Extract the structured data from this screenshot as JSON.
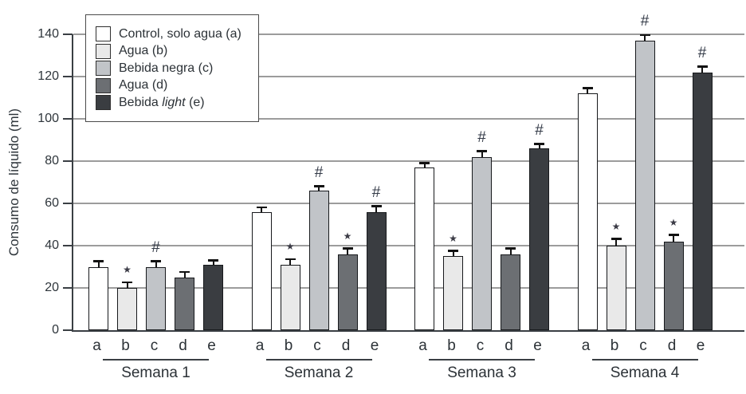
{
  "chart_data": {
    "type": "bar",
    "title": "",
    "ylabel": "Consumo de líquido (ml)",
    "xlabel": "",
    "ylim": [
      0,
      140
    ],
    "yticks": [
      0,
      20,
      40,
      60,
      80,
      100,
      120,
      140
    ],
    "grid": true,
    "legend_position": "top-left",
    "groups": [
      "Semana 1",
      "Semana 2",
      "Semana 3",
      "Semana 4"
    ],
    "bar_letters": [
      "a",
      "b",
      "c",
      "d",
      "e"
    ],
    "series": [
      {
        "letter": "a",
        "label": "Control, solo agua (a)",
        "italic_word": null,
        "color": "#ffffff",
        "values": [
          30,
          56,
          77,
          112
        ],
        "errors": [
          2.5,
          2,
          2,
          2.5
        ],
        "annotations": [
          "",
          "",
          "",
          ""
        ]
      },
      {
        "letter": "b",
        "label": "Agua (b)",
        "italic_word": null,
        "color": "#e9e9e9",
        "values": [
          20,
          31,
          35,
          40
        ],
        "errors": [
          2.5,
          2.5,
          2.5,
          3
        ],
        "annotations": [
          "★",
          "★",
          "★",
          "★"
        ]
      },
      {
        "letter": "c",
        "label": "Bebida negra (c)",
        "italic_word": null,
        "color": "#c1c4c8",
        "values": [
          30,
          66,
          82,
          137
        ],
        "errors": [
          2.5,
          2,
          2.5,
          2.5
        ],
        "annotations": [
          "#",
          "#",
          "#",
          "#"
        ]
      },
      {
        "letter": "d",
        "label": "Agua (d)",
        "italic_word": null,
        "color": "#6c6f73",
        "values": [
          25,
          36,
          36,
          42
        ],
        "errors": [
          2.5,
          2.5,
          2.5,
          3
        ],
        "annotations": [
          "",
          "★",
          "",
          "★"
        ]
      },
      {
        "letter": "e",
        "label": "Bebida light (e)",
        "italic_word": "light",
        "color": "#3a3d41",
        "values": [
          31,
          56,
          86,
          122
        ],
        "errors": [
          2,
          2.5,
          2,
          2.5
        ],
        "annotations": [
          "",
          "#",
          "#",
          "#"
        ]
      }
    ],
    "colors": {
      "grid": "#9c9c9c",
      "axis": "#3a3f44",
      "text": "#2c3237",
      "error_bar": "#121212",
      "annotation": "#333a47"
    }
  }
}
